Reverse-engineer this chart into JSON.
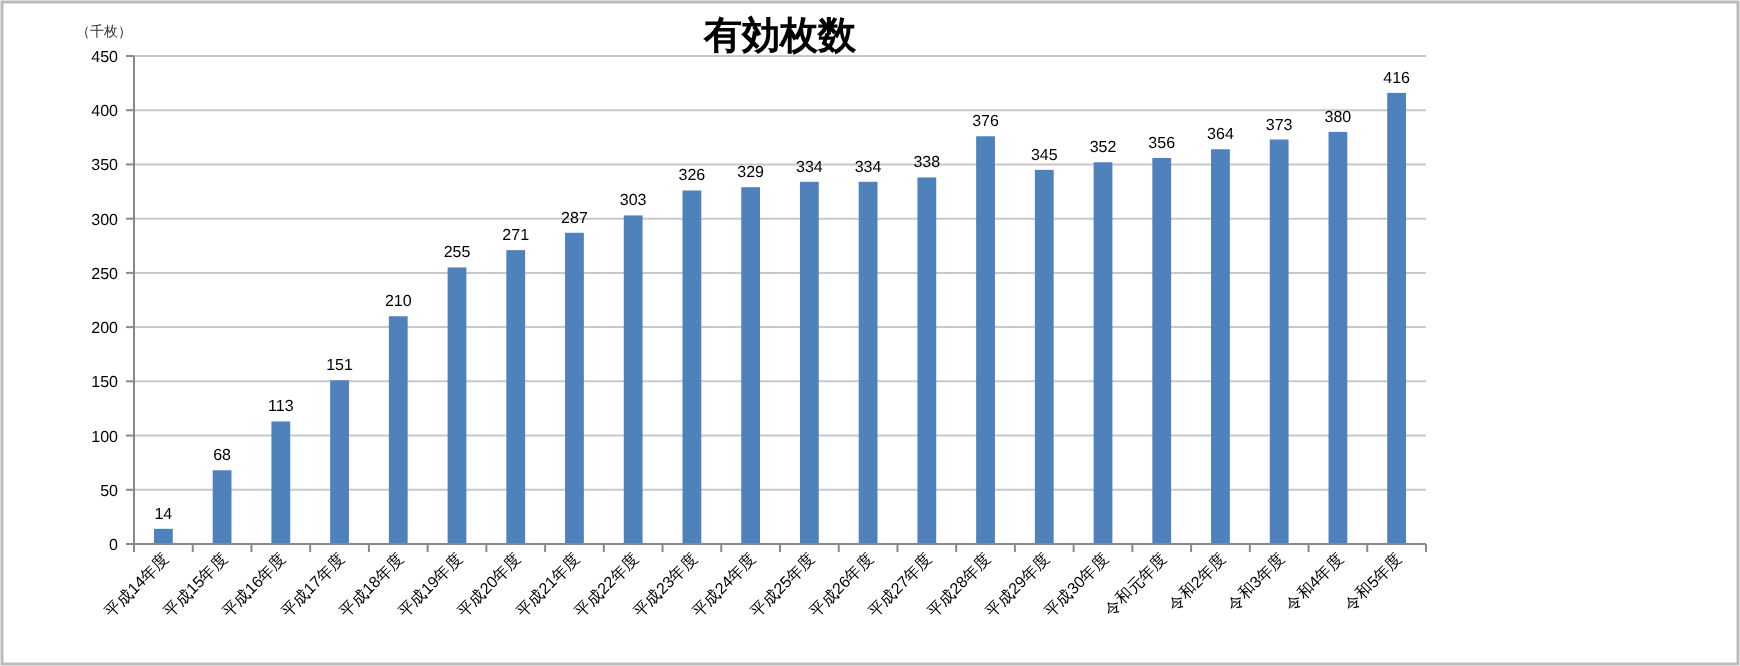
{
  "chart_data": {
    "type": "bar",
    "title": "有効枚数",
    "ylabel": "（千枚）",
    "categories": [
      "平成14年度",
      "平成15年度",
      "平成16年度",
      "平成17年度",
      "平成18年度",
      "平成19年度",
      "平成20年度",
      "平成21年度",
      "平成22年度",
      "平成23年度",
      "平成24年度",
      "平成25年度",
      "平成26年度",
      "平成27年度",
      "平成28年度",
      "平成29年度",
      "平成30年度",
      "令和元年度",
      "令和2年度",
      "令和3年度",
      "令和4年度",
      "令和5年度"
    ],
    "values": [
      14,
      68,
      113,
      151,
      210,
      255,
      271,
      287,
      303,
      326,
      329,
      334,
      334,
      338,
      376,
      345,
      352,
      356,
      364,
      373,
      380,
      416
    ],
    "color": "#4f81bd",
    "ylim": [
      0,
      450
    ],
    "yticks": [
      0,
      50,
      100,
      150,
      200,
      250,
      300,
      350,
      400,
      450
    ],
    "grid": "y",
    "data_labels": true
  }
}
